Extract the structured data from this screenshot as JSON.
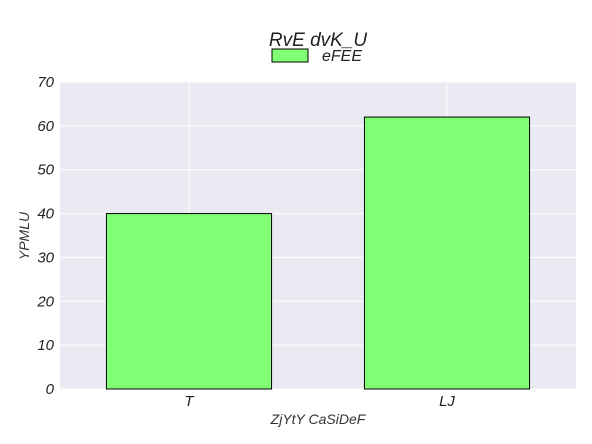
{
  "chart_data": {
    "type": "bar",
    "title": "RvE dvK_U",
    "xlabel": "ZjYtY CaSiDeF",
    "ylabel": "YPMLU",
    "categories": [
      "T",
      "LJ"
    ],
    "series": [
      {
        "name": "eFEE",
        "values": [
          40,
          62
        ],
        "color": "#80ff74"
      }
    ],
    "ylim": [
      0,
      70
    ],
    "yticks": [
      0,
      10,
      20,
      30,
      40,
      50,
      60,
      70
    ],
    "grid": true,
    "legend_position": "top-center",
    "plot_background": "#eaeaf2"
  }
}
